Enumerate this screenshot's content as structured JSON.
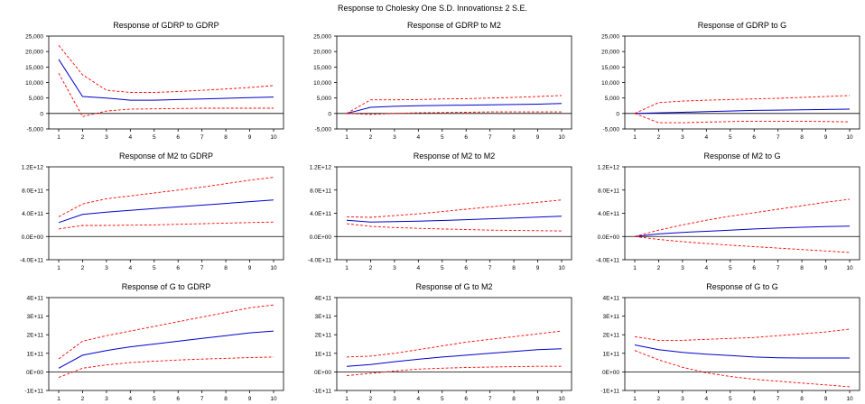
{
  "title": "Response to Cholesky One S.D. Innovations± 2 S.E.",
  "colors": {
    "response": "#0000cc",
    "band": "#ff0000",
    "axis": "#000000"
  },
  "chart_data": [
    {
      "type": "line",
      "title": "Response of GDRP to GDRP",
      "x": [
        1,
        2,
        3,
        4,
        5,
        6,
        7,
        8,
        9,
        10
      ],
      "yticks": [
        "25,000",
        "20,000",
        "15,000",
        "10,000",
        "5,000",
        "0",
        "-5,000"
      ],
      "ylim": [
        -5000,
        25000
      ],
      "series": [
        {
          "role": "response",
          "values": [
            17500,
            5500,
            5000,
            4300,
            4300,
            4500,
            4700,
            4900,
            5100,
            5300
          ]
        },
        {
          "role": "upper",
          "values": [
            22000,
            12500,
            7500,
            6800,
            6800,
            7100,
            7500,
            7900,
            8400,
            9000
          ]
        },
        {
          "role": "lower",
          "values": [
            13000,
            -1000,
            800,
            1400,
            1500,
            1600,
            1700,
            1700,
            1700,
            1700
          ]
        }
      ]
    },
    {
      "type": "line",
      "title": "Response of GDRP to M2",
      "x": [
        1,
        2,
        3,
        4,
        5,
        6,
        7,
        8,
        9,
        10
      ],
      "yticks": [
        "25,000",
        "20,000",
        "15,000",
        "10,000",
        "5,000",
        "0",
        "-5,000"
      ],
      "ylim": [
        -5000,
        25000
      ],
      "series": [
        {
          "role": "response",
          "values": [
            0,
            2000,
            2300,
            2500,
            2600,
            2700,
            2800,
            2900,
            3000,
            3200
          ]
        },
        {
          "role": "upper",
          "values": [
            0,
            4400,
            4400,
            4500,
            4700,
            4800,
            5000,
            5200,
            5500,
            5800
          ]
        },
        {
          "role": "lower",
          "values": [
            0,
            -300,
            0,
            200,
            300,
            400,
            500,
            500,
            500,
            500
          ]
        }
      ]
    },
    {
      "type": "line",
      "title": "Response of GDRP to G",
      "x": [
        1,
        2,
        3,
        4,
        5,
        6,
        7,
        8,
        9,
        10
      ],
      "yticks": [
        "25,000",
        "20,000",
        "15,000",
        "10,000",
        "5,000",
        "0",
        "-5,000"
      ],
      "ylim": [
        -5000,
        25000
      ],
      "series": [
        {
          "role": "response",
          "values": [
            0,
            200,
            400,
            600,
            800,
            1000,
            1100,
            1200,
            1300,
            1400
          ]
        },
        {
          "role": "upper",
          "values": [
            0,
            3500,
            4000,
            4300,
            4500,
            4700,
            4900,
            5200,
            5500,
            5800
          ]
        },
        {
          "role": "lower",
          "values": [
            0,
            -3000,
            -3000,
            -2800,
            -2600,
            -2500,
            -2500,
            -2500,
            -2600,
            -2700
          ]
        }
      ]
    },
    {
      "type": "line",
      "title": "Response of M2 to GDRP",
      "x": [
        1,
        2,
        3,
        4,
        5,
        6,
        7,
        8,
        9,
        10
      ],
      "yticks": [
        "1.2E+12",
        "8.0E+11",
        "4.0E+11",
        "0.0E+00",
        "-4.0E+11"
      ],
      "ylim": [
        -400000000000.0,
        1200000000000.0
      ],
      "series": [
        {
          "role": "response",
          "values": [
            240000000000.0,
            380000000000.0,
            420000000000.0,
            450000000000.0,
            480000000000.0,
            510000000000.0,
            540000000000.0,
            570000000000.0,
            600000000000.0,
            630000000000.0
          ]
        },
        {
          "role": "upper",
          "values": [
            340000000000.0,
            560000000000.0,
            650000000000.0,
            700000000000.0,
            750000000000.0,
            800000000000.0,
            850000000000.0,
            910000000000.0,
            970000000000.0,
            1020000000000.0
          ]
        },
        {
          "role": "lower",
          "values": [
            130000000000.0,
            190000000000.0,
            190000000000.0,
            195000000000.0,
            200000000000.0,
            210000000000.0,
            220000000000.0,
            230000000000.0,
            240000000000.0,
            250000000000.0
          ]
        }
      ]
    },
    {
      "type": "line",
      "title": "Response of M2 to M2",
      "x": [
        1,
        2,
        3,
        4,
        5,
        6,
        7,
        8,
        9,
        10
      ],
      "yticks": [
        "1.2E+12",
        "8.0E+11",
        "4.0E+11",
        "0.0E+00",
        "-4.0E+11"
      ],
      "ylim": [
        -400000000000.0,
        1200000000000.0
      ],
      "series": [
        {
          "role": "response",
          "values": [
            280000000000.0,
            250000000000.0,
            255000000000.0,
            265000000000.0,
            275000000000.0,
            290000000000.0,
            305000000000.0,
            320000000000.0,
            335000000000.0,
            350000000000.0
          ]
        },
        {
          "role": "upper",
          "values": [
            340000000000.0,
            330000000000.0,
            360000000000.0,
            390000000000.0,
            430000000000.0,
            470000000000.0,
            510000000000.0,
            550000000000.0,
            590000000000.0,
            630000000000.0
          ]
        },
        {
          "role": "lower",
          "values": [
            220000000000.0,
            175000000000.0,
            155000000000.0,
            140000000000.0,
            130000000000.0,
            120000000000.0,
            110000000000.0,
            105000000000.0,
            100000000000.0,
            95000000000.0
          ]
        }
      ]
    },
    {
      "type": "line",
      "title": "Response of M2 to G",
      "x": [
        1,
        2,
        3,
        4,
        5,
        6,
        7,
        8,
        9,
        10
      ],
      "yticks": [
        "1.2E+12",
        "8.0E+11",
        "4.0E+11",
        "0.0E+00",
        "-4.0E+11"
      ],
      "ylim": [
        -400000000000.0,
        1200000000000.0
      ],
      "series": [
        {
          "role": "response",
          "values": [
            0,
            45000000000.0,
            70000000000.0,
            90000000000.0,
            110000000000.0,
            130000000000.0,
            145000000000.0,
            160000000000.0,
            170000000000.0,
            180000000000.0
          ]
        },
        {
          "role": "upper",
          "values": [
            0,
            110000000000.0,
            200000000000.0,
            280000000000.0,
            350000000000.0,
            410000000000.0,
            470000000000.0,
            530000000000.0,
            590000000000.0,
            640000000000.0
          ]
        },
        {
          "role": "lower",
          "values": [
            0,
            -50000000000.0,
            -90000000000.0,
            -120000000000.0,
            -150000000000.0,
            -175000000000.0,
            -200000000000.0,
            -225000000000.0,
            -250000000000.0,
            -275000000000.0
          ]
        }
      ]
    },
    {
      "type": "line",
      "title": "Response of G to GDRP",
      "x": [
        1,
        2,
        3,
        4,
        5,
        6,
        7,
        8,
        9,
        10
      ],
      "yticks": [
        "4E+11",
        "3E+11",
        "2E+11",
        "1E+11",
        "0E+00",
        "-1E+11"
      ],
      "ylim": [
        -100000000000.0,
        400000000000.0
      ],
      "series": [
        {
          "role": "response",
          "values": [
            20000000000.0,
            90000000000.0,
            115000000000.0,
            135000000000.0,
            150000000000.0,
            165000000000.0,
            180000000000.0,
            195000000000.0,
            210000000000.0,
            220000000000.0
          ]
        },
        {
          "role": "upper",
          "values": [
            70000000000.0,
            165000000000.0,
            195000000000.0,
            220000000000.0,
            245000000000.0,
            270000000000.0,
            295000000000.0,
            320000000000.0,
            345000000000.0,
            360000000000.0
          ]
        },
        {
          "role": "lower",
          "values": [
            -30000000000.0,
            20000000000.0,
            38000000000.0,
            50000000000.0,
            58000000000.0,
            64000000000.0,
            69000000000.0,
            73000000000.0,
            77000000000.0,
            80000000000.0
          ]
        }
      ]
    },
    {
      "type": "line",
      "title": "Response of G to M2",
      "x": [
        1,
        2,
        3,
        4,
        5,
        6,
        7,
        8,
        9,
        10
      ],
      "yticks": [
        "4E+11",
        "3E+11",
        "2E+11",
        "1E+11",
        "0E+00",
        "-1E+11"
      ],
      "ylim": [
        -100000000000.0,
        400000000000.0
      ],
      "series": [
        {
          "role": "response",
          "values": [
            30000000000.0,
            40000000000.0,
            55000000000.0,
            68000000000.0,
            80000000000.0,
            90000000000.0,
            100000000000.0,
            110000000000.0,
            120000000000.0,
            125000000000.0
          ]
        },
        {
          "role": "upper",
          "values": [
            80000000000.0,
            85000000000.0,
            100000000000.0,
            120000000000.0,
            140000000000.0,
            160000000000.0,
            175000000000.0,
            190000000000.0,
            205000000000.0,
            220000000000.0
          ]
        },
        {
          "role": "lower",
          "values": [
            -20000000000.0,
            -8000000000.0,
            5000000000.0,
            15000000000.0,
            20000000000.0,
            24000000000.0,
            26000000000.0,
            28000000000.0,
            30000000000.0,
            30000000000.0
          ]
        }
      ]
    },
    {
      "type": "line",
      "title": "Response of G to G",
      "x": [
        1,
        2,
        3,
        4,
        5,
        6,
        7,
        8,
        9,
        10
      ],
      "yticks": [
        "4E+11",
        "3E+11",
        "2E+11",
        "1E+11",
        "0E+00",
        "-1E+11"
      ],
      "ylim": [
        -100000000000.0,
        400000000000.0
      ],
      "series": [
        {
          "role": "response",
          "values": [
            145000000000.0,
            120000000000.0,
            105000000000.0,
            95000000000.0,
            88000000000.0,
            80000000000.0,
            76000000000.0,
            75000000000.0,
            75000000000.0,
            75000000000.0
          ]
        },
        {
          "role": "upper",
          "values": [
            190000000000.0,
            170000000000.0,
            170000000000.0,
            175000000000.0,
            180000000000.0,
            185000000000.0,
            195000000000.0,
            205000000000.0,
            215000000000.0,
            230000000000.0
          ]
        },
        {
          "role": "lower",
          "values": [
            115000000000.0,
            65000000000.0,
            25000000000.0,
            -5000000000.0,
            -25000000000.0,
            -40000000000.0,
            -50000000000.0,
            -60000000000.0,
            -70000000000.0,
            -80000000000.0
          ]
        }
      ]
    }
  ]
}
